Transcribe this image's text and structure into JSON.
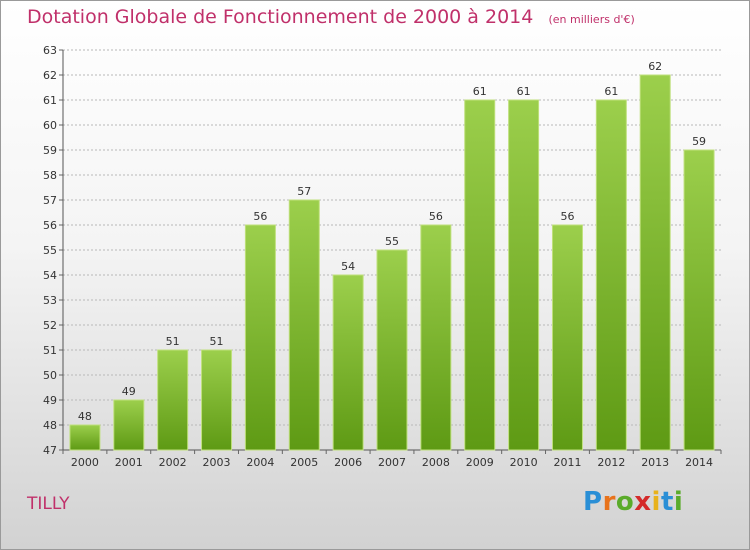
{
  "title": "Dotation Globale de Fonctionnement de 2000 à 2014",
  "subtitle": "(en milliers d'€)",
  "city": "TILLY",
  "logo_text": "Proxiti",
  "colors": {
    "title": "#c0306a",
    "bar_light": "#9ccf4c",
    "bar_dark": "#5e9a14",
    "grid": "#b8b8b8",
    "text": "#333333"
  },
  "chart_data": {
    "type": "bar",
    "title": "Dotation Globale de Fonctionnement de 2000 à 2014",
    "subtitle": "(en milliers d'€)",
    "xlabel": "",
    "ylabel": "",
    "categories": [
      "2000",
      "2001",
      "2002",
      "2003",
      "2004",
      "2005",
      "2006",
      "2007",
      "2008",
      "2009",
      "2010",
      "2011",
      "2012",
      "2013",
      "2014"
    ],
    "values": [
      48,
      49,
      51,
      51,
      56,
      57,
      54,
      55,
      56,
      61,
      61,
      56,
      61,
      62,
      59
    ],
    "ylim": [
      47,
      63
    ],
    "yticks": [
      47,
      48,
      49,
      50,
      51,
      52,
      53,
      54,
      55,
      56,
      57,
      58,
      59,
      60,
      61,
      62,
      63
    ],
    "grid": true,
    "data_labels": true,
    "legend": "none"
  }
}
